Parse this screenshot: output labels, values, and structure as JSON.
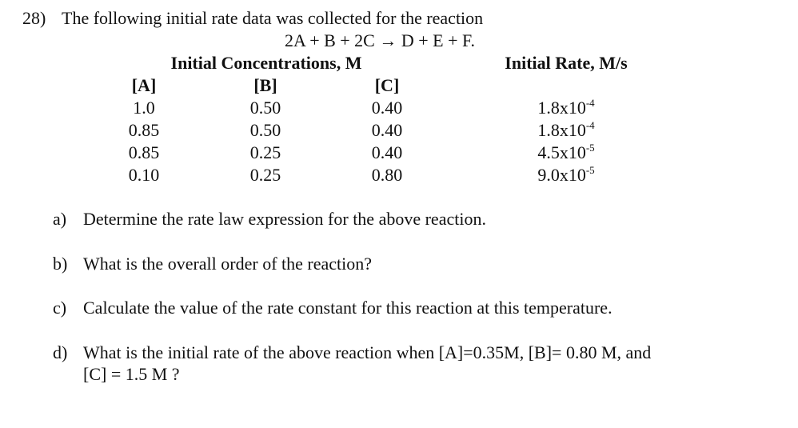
{
  "question": {
    "number": "28)",
    "text": "The following initial rate data was collected for the reaction",
    "reaction": "2A + B + 2C → D + E + F."
  },
  "table": {
    "group_header": "Initial Concentrations, M",
    "rate_header": "Initial Rate, M/s",
    "columns": [
      "[A]",
      "[B]",
      "[C]"
    ],
    "rows": [
      [
        "1.0",
        "0.50",
        "0.40"
      ],
      [
        "0.85",
        "0.50",
        "0.40"
      ],
      [
        "0.85",
        "0.25",
        "0.40"
      ],
      [
        "0.10",
        "0.25",
        "0.80"
      ]
    ],
    "rates": [
      {
        "base": "1.8x10",
        "exp": "-4"
      },
      {
        "base": "1.8x10",
        "exp": "-4"
      },
      {
        "base": "4.5x10",
        "exp": "-5"
      },
      {
        "base": "9.0x10",
        "exp": "-5"
      }
    ]
  },
  "parts": [
    {
      "label": "a)",
      "lines": [
        "Determine the rate law expression for the above reaction."
      ]
    },
    {
      "label": "b)",
      "lines": [
        "What is the overall order of the reaction?"
      ]
    },
    {
      "label": "c)",
      "lines": [
        "Calculate the value of the rate constant for this reaction at this temperature."
      ]
    },
    {
      "label": "d)",
      "lines": [
        "What is the initial rate of the above reaction when [A]=0.35M, [B]= 0.80 M, and",
        "[C] = 1.5 M ?"
      ]
    }
  ]
}
